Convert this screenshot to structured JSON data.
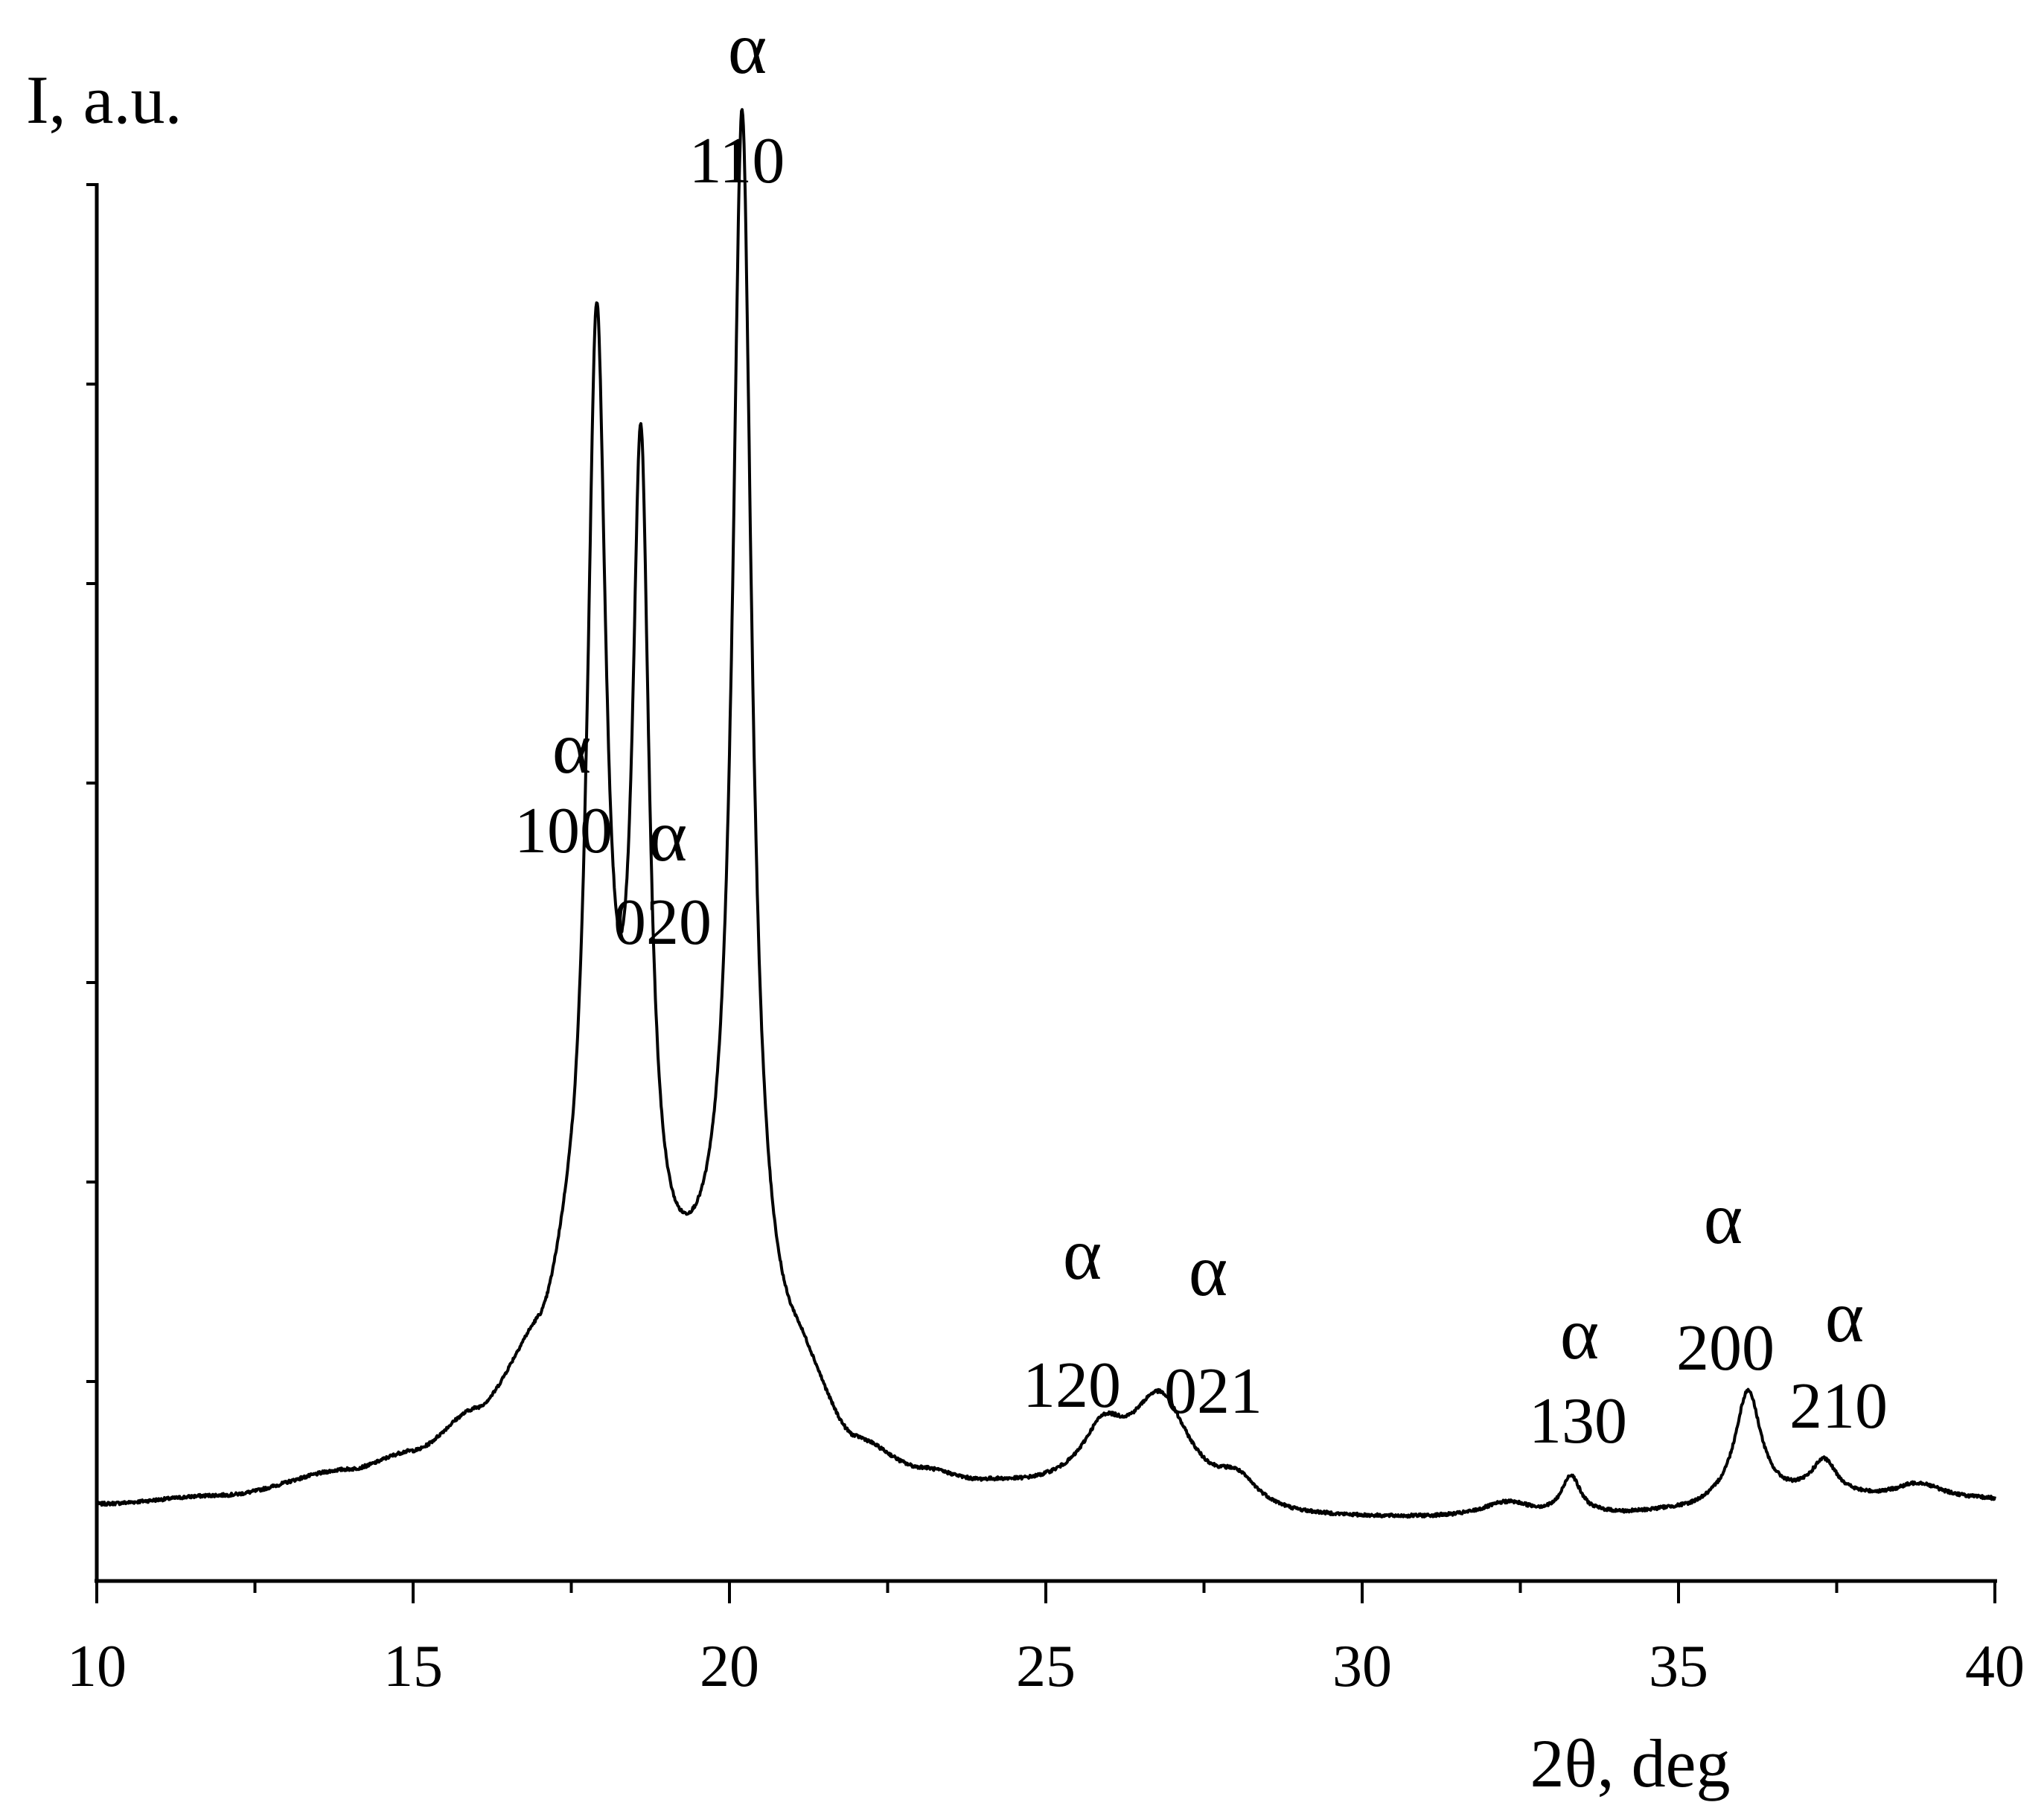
{
  "chart_data": {
    "type": "line",
    "title": "",
    "xlabel": "2θ, deg",
    "ylabel": "I, a.u.",
    "xlim": [
      10,
      40
    ],
    "ylim": [
      0,
      3.5
    ],
    "x_ticks": [
      10,
      15,
      20,
      25,
      30,
      35,
      40
    ],
    "x_tick_labels": [
      "10",
      "15",
      "20",
      "25",
      "30",
      "35",
      "40"
    ],
    "x_minor_step": 2.5,
    "y_tick_step": 0.5,
    "y_tick_labels_shown": false,
    "grid": false,
    "line_color": "#000000",
    "baseline": [
      [
        10,
        0.19
      ],
      [
        12,
        0.21
      ],
      [
        14,
        0.27
      ],
      [
        15,
        0.31
      ],
      [
        16,
        0.4
      ],
      [
        17,
        0.55
      ],
      [
        17.5,
        0.68
      ],
      [
        18,
        0.8
      ],
      [
        19,
        0.66
      ],
      [
        20,
        0.7
      ],
      [
        21,
        0.52
      ],
      [
        22,
        0.32
      ],
      [
        23,
        0.26
      ],
      [
        24,
        0.23
      ],
      [
        25,
        0.22
      ],
      [
        26,
        0.21
      ],
      [
        27,
        0.19
      ],
      [
        28,
        0.16
      ],
      [
        29,
        0.15
      ],
      [
        30,
        0.15
      ],
      [
        31,
        0.15
      ],
      [
        32,
        0.15
      ],
      [
        33,
        0.15
      ],
      [
        34,
        0.16
      ],
      [
        35,
        0.17
      ],
      [
        36,
        0.19
      ],
      [
        37,
        0.2
      ],
      [
        38,
        0.2
      ],
      [
        39,
        0.2
      ],
      [
        40,
        0.2
      ]
    ],
    "peaks": [
      {
        "x": 17.9,
        "height": 2.3,
        "width": 0.18
      },
      {
        "x": 18.6,
        "height": 2.01,
        "width": 0.16
      },
      {
        "x": 20.2,
        "height": 2.97,
        "width": 0.18
      },
      {
        "x": 25.9,
        "height": 0.13,
        "width": 0.4
      },
      {
        "x": 26.8,
        "height": 0.25,
        "width": 0.55
      },
      {
        "x": 28.0,
        "height": 0.07,
        "width": 0.4
      },
      {
        "x": 32.3,
        "height": 0.04,
        "width": 0.5
      },
      {
        "x": 33.3,
        "height": 0.1,
        "width": 0.18
      },
      {
        "x": 36.1,
        "height": 0.28,
        "width": 0.25
      },
      {
        "x": 37.3,
        "height": 0.09,
        "width": 0.25
      },
      {
        "x": 38.8,
        "height": 0.04,
        "width": 0.45
      }
    ],
    "noise_amplitude": 0.004,
    "annotations": [
      {
        "symbol": "α",
        "hkl": "100"
      },
      {
        "symbol": "α",
        "hkl": "020"
      },
      {
        "symbol": "α",
        "hkl": "110"
      },
      {
        "symbol": "α",
        "hkl": "120"
      },
      {
        "symbol": "α",
        "hkl": "021"
      },
      {
        "symbol": "α",
        "hkl": "130"
      },
      {
        "symbol": "α",
        "hkl": "200"
      },
      {
        "symbol": "α",
        "hkl": "210"
      }
    ]
  }
}
